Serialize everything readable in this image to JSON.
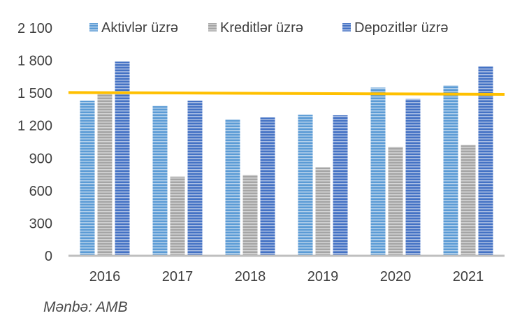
{
  "chart_data": {
    "type": "bar",
    "categories": [
      "2016",
      "2017",
      "2018",
      "2019",
      "2020",
      "2021"
    ],
    "series": [
      {
        "name": "Aktivlər üzrə",
        "color": "#5b9bd5",
        "values": [
          1430,
          1380,
          1255,
          1300,
          1550,
          1570
        ]
      },
      {
        "name": "Kreditlər üzrə",
        "color": "#a5a5a5",
        "values": [
          1490,
          730,
          745,
          815,
          1005,
          1020
        ]
      },
      {
        "name": "Depozitlər üzrə",
        "color": "#4472c4",
        "values": [
          1790,
          1430,
          1275,
          1295,
          1445,
          1745
        ]
      }
    ],
    "reference_line": {
      "color": "#ffc000",
      "values": [
        1505,
        1488
      ]
    },
    "yticks": [
      "0",
      "300",
      "600",
      "900",
      "1 200",
      "1 500",
      "1 800",
      "2 100"
    ],
    "ylim": [
      0,
      2100
    ],
    "legend": "top",
    "grid": false
  },
  "source": "Mənbə: AMB"
}
